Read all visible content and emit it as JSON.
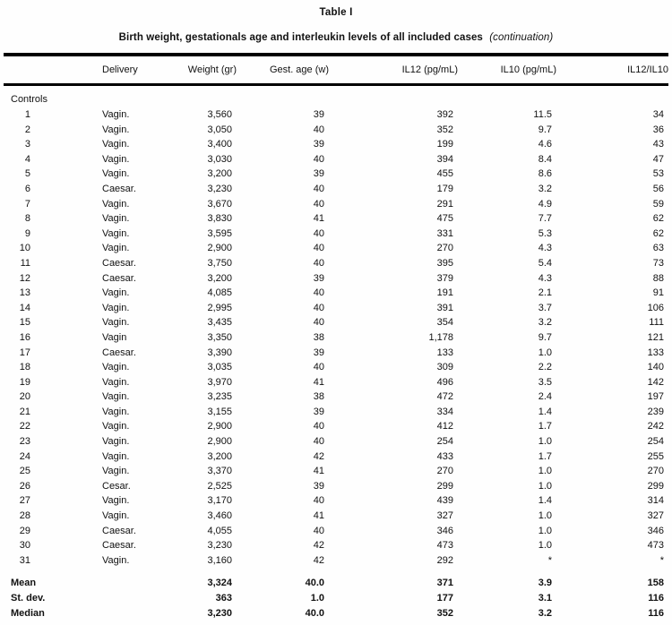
{
  "table": {
    "title": "Table I",
    "subtitle": "Birth weight, gestationals age and interleukin levels of all included cases",
    "subtitle_note": "(continuation)",
    "columns": [
      "",
      "Delivery",
      "Weight (gr)",
      "Gest. age (w)",
      "IL12 (pg/mL)",
      "IL10 (pg/mL)",
      "IL12/IL10"
    ],
    "section_label": "Controls",
    "rows": [
      [
        "1",
        "Vagin.",
        "3,560",
        "39",
        "392",
        "11.5",
        "34"
      ],
      [
        "2",
        "Vagin.",
        "3,050",
        "40",
        "352",
        "9.7",
        "36"
      ],
      [
        "3",
        "Vagin.",
        "3,400",
        "39",
        "199",
        "4.6",
        "43"
      ],
      [
        "4",
        "Vagin.",
        "3,030",
        "40",
        "394",
        "8.4",
        "47"
      ],
      [
        "5",
        "Vagin.",
        "3,200",
        "39",
        "455",
        "8.6",
        "53"
      ],
      [
        "6",
        "Caesar.",
        "3,230",
        "40",
        "179",
        "3.2",
        "56"
      ],
      [
        "7",
        "Vagin.",
        "3,670",
        "40",
        "291",
        "4.9",
        "59"
      ],
      [
        "8",
        "Vagin.",
        "3,830",
        "41",
        "475",
        "7.7",
        "62"
      ],
      [
        "9",
        "Vagin.",
        "3,595",
        "40",
        "331",
        "5.3",
        "62"
      ],
      [
        "10",
        "Vagin.",
        "2,900",
        "40",
        "270",
        "4.3",
        "63"
      ],
      [
        "11",
        "Caesar.",
        "3,750",
        "40",
        "395",
        "5.4",
        "73"
      ],
      [
        "12",
        "Caesar.",
        "3,200",
        "39",
        "379",
        "4.3",
        "88"
      ],
      [
        "13",
        "Vagin.",
        "4,085",
        "40",
        "191",
        "2.1",
        "91"
      ],
      [
        "14",
        "Vagin.",
        "2,995",
        "40",
        "391",
        "3.7",
        "106"
      ],
      [
        "15",
        "Vagin.",
        "3,435",
        "40",
        "354",
        "3.2",
        "111"
      ],
      [
        "16",
        "Vagin",
        "3,350",
        "38",
        "1,178",
        "9.7",
        "121"
      ],
      [
        "17",
        "Caesar.",
        "3,390",
        "39",
        "133",
        "1.0",
        "133"
      ],
      [
        "18",
        "Vagin.",
        "3,035",
        "40",
        "309",
        "2.2",
        "140"
      ],
      [
        "19",
        "Vagin.",
        "3,970",
        "41",
        "496",
        "3.5",
        "142"
      ],
      [
        "20",
        "Vagin.",
        "3,235",
        "38",
        "472",
        "2.4",
        "197"
      ],
      [
        "21",
        "Vagin.",
        "3,155",
        "39",
        "334",
        "1.4",
        "239"
      ],
      [
        "22",
        "Vagin.",
        "2,900",
        "40",
        "412",
        "1.7",
        "242"
      ],
      [
        "23",
        "Vagin.",
        "2,900",
        "40",
        "254",
        "1.0",
        "254"
      ],
      [
        "24",
        "Vagin.",
        "3,200",
        "42",
        "433",
        "1.7",
        "255"
      ],
      [
        "25",
        "Vagin.",
        "3,370",
        "41",
        "270",
        "1.0",
        "270"
      ],
      [
        "26",
        "Cesar.",
        "2,525",
        "39",
        "299",
        "1.0",
        "299"
      ],
      [
        "27",
        "Vagin.",
        "3,170",
        "40",
        "439",
        "1.4",
        "314"
      ],
      [
        "28",
        "Vagin.",
        "3,460",
        "41",
        "327",
        "1.0",
        "327"
      ],
      [
        "29",
        "Caesar.",
        "4,055",
        "40",
        "346",
        "1.0",
        "346"
      ],
      [
        "30",
        "Caesar.",
        "3,230",
        "42",
        "473",
        "1.0",
        "473"
      ],
      [
        "31",
        "Vagin.",
        "3,160",
        "42",
        "292",
        "*",
        "*"
      ]
    ],
    "summary_rows": [
      [
        "Mean",
        "",
        "3,324",
        "40.0",
        "371",
        "3.9",
        "158"
      ],
      [
        "St. dev.",
        "",
        "363",
        "1.0",
        "177",
        "3.1",
        "116"
      ],
      [
        "Median",
        "",
        "3,230",
        "40.0",
        "352",
        "3.2",
        "116"
      ]
    ]
  }
}
